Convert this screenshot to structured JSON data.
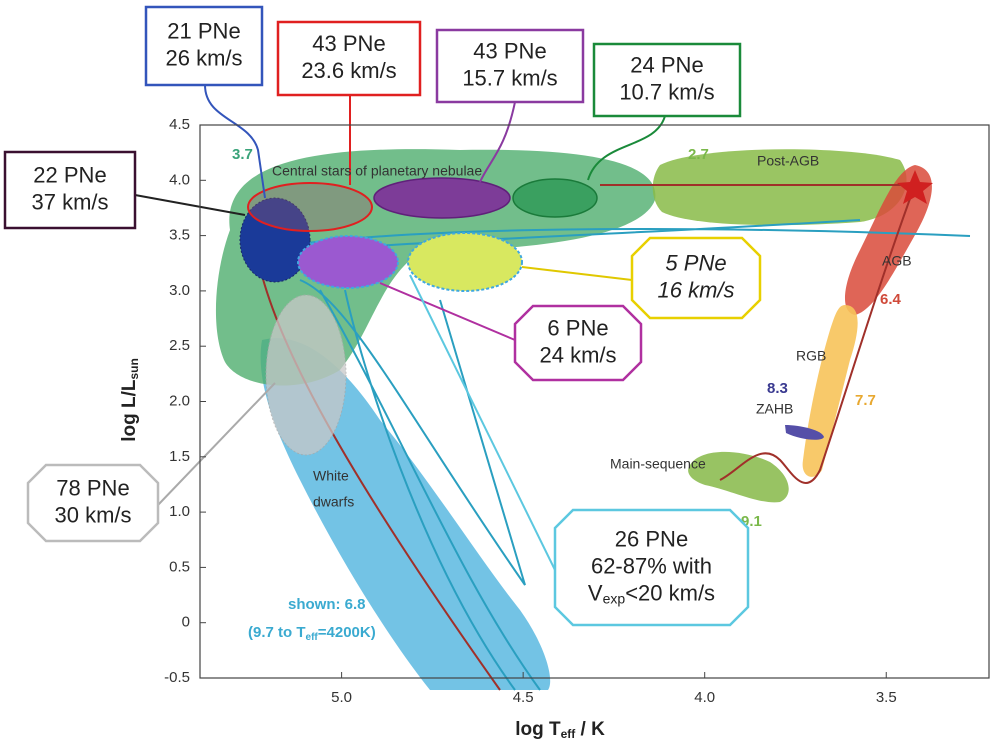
{
  "chart_data": {
    "type": "hr",
    "xlabel": {
      "text": "log T",
      "sub": "eff",
      "tail": " / K"
    },
    "ylabel": {
      "text": "log L/L",
      "sub": "sun"
    },
    "xlim": [
      5.39,
      3.217
    ],
    "ylim": [
      -0.5,
      4.5
    ],
    "xticks": [
      {
        "value": 5,
        "label": "5.0"
      },
      4.5,
      {
        "value": 4,
        "label": "4.0"
      },
      3.5
    ],
    "yticks": [
      -0.5,
      0,
      0.5,
      {
        "value": 1,
        "label": "1.0"
      },
      1.5,
      {
        "value": 2,
        "label": "2.0"
      },
      2.5,
      {
        "value": 3,
        "label": "3.0"
      },
      3.5,
      {
        "value": 4,
        "label": "4.0"
      },
      4.5
    ],
    "region_labels": [
      "Central stars of planetary nebulae",
      "Post-AGB",
      "AGB",
      "RGB",
      "ZAHB",
      "Main-sequence",
      "White",
      "dwarfs"
    ],
    "lifetimes": [
      "3.7",
      "2.7",
      "6.4",
      "7.7",
      "8.3",
      "9.1"
    ],
    "shown_note": {
      "line1": "shown: 6.8",
      "line2": "(9.7 to T",
      "sub": "eff",
      "tail": "=4200K)"
    },
    "callouts": [
      {
        "lines": [
          "21 PNe",
          "26 km/s"
        ]
      },
      {
        "lines": [
          "43 PNe",
          "23.6 km/s"
        ]
      },
      {
        "lines": [
          "43 PNe",
          "15.7 km/s"
        ]
      },
      {
        "lines": [
          "24 PNe",
          "10.7 km/s"
        ]
      },
      {
        "lines": [
          "22 PNe",
          "37 km/s"
        ]
      },
      {
        "lines": [
          "5 PNe",
          "16 km/s"
        ]
      },
      {
        "lines": [
          "6 PNe",
          "24 km/s"
        ]
      },
      {
        "lines": [
          "78 PNe",
          "30 km/s"
        ]
      },
      {
        "lines": [
          "26 PNe",
          "62-87% with"
        ],
        "last": {
          "text": "V",
          "sub": "exp",
          "tail": "<20 km/s"
        }
      }
    ]
  }
}
